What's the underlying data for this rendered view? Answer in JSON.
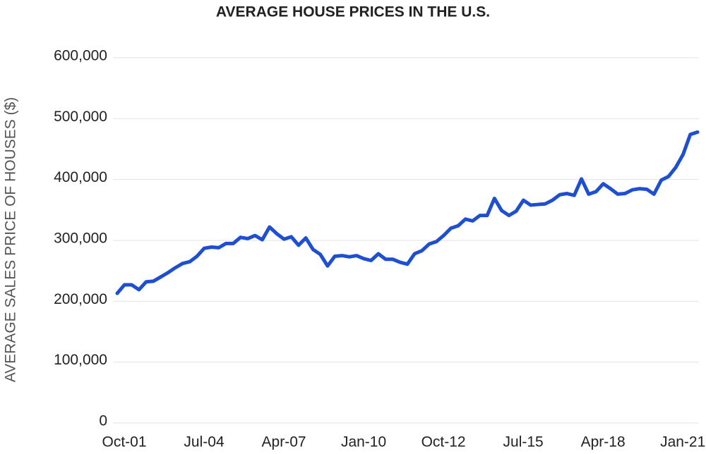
{
  "chart_data": {
    "type": "line",
    "title": "AVERAGE HOUSE PRICES IN THE U.S.",
    "y_label": "AVERAGE SALES PRICE OF HOUSES ($)",
    "categories": [
      "Oct-01",
      null,
      null,
      null,
      null,
      null,
      null,
      null,
      null,
      null,
      null,
      "Jul-04",
      null,
      null,
      null,
      null,
      null,
      null,
      null,
      null,
      null,
      null,
      "Apr-07",
      null,
      null,
      null,
      null,
      null,
      null,
      null,
      null,
      null,
      null,
      "Jan-10",
      null,
      null,
      null,
      null,
      null,
      null,
      null,
      null,
      null,
      null,
      "Oct-12",
      null,
      null,
      null,
      null,
      null,
      null,
      null,
      null,
      null,
      null,
      "Jul-15",
      null,
      null,
      null,
      null,
      null,
      null,
      null,
      null,
      null,
      null,
      "Apr-18",
      null,
      null,
      null,
      null,
      null,
      null,
      null,
      null,
      null,
      null,
      "Jan-21",
      null,
      null,
      null
    ],
    "series": [
      {
        "color": "#1f4fd1",
        "values": [
          213000,
          227000,
          227000,
          219000,
          232000,
          233000,
          240000,
          247000,
          255000,
          262000,
          265000,
          274000,
          287000,
          289000,
          288000,
          295000,
          295000,
          305000,
          303000,
          308000,
          301000,
          322000,
          311000,
          302000,
          306000,
          292000,
          304000,
          285000,
          277000,
          258000,
          274000,
          275000,
          273000,
          275000,
          270000,
          267000,
          278000,
          269000,
          269000,
          264000,
          261000,
          278000,
          283000,
          294000,
          298000,
          308000,
          320000,
          324000,
          335000,
          332000,
          341000,
          341000,
          369000,
          349000,
          341000,
          348000,
          366000,
          358000,
          359000,
          360000,
          366000,
          375000,
          377000,
          374000,
          401000,
          376000,
          380000,
          393000,
          385000,
          376000,
          377000,
          383000,
          385000,
          384000,
          376000,
          399000,
          405000,
          420000,
          441000,
          474000,
          478000
        ]
      }
    ],
    "ylim": [
      0,
      600000
    ],
    "yticks": [
      0,
      {
        "value": 100000,
        "label": "100,000"
      },
      {
        "value": 200000,
        "label": "200,000"
      },
      {
        "value": 300000,
        "label": "300,000"
      },
      {
        "value": 400000,
        "label": "400,000"
      },
      {
        "value": 500000,
        "label": "500,000"
      },
      {
        "value": 600000,
        "label": "600,000"
      }
    ],
    "grid": true
  }
}
